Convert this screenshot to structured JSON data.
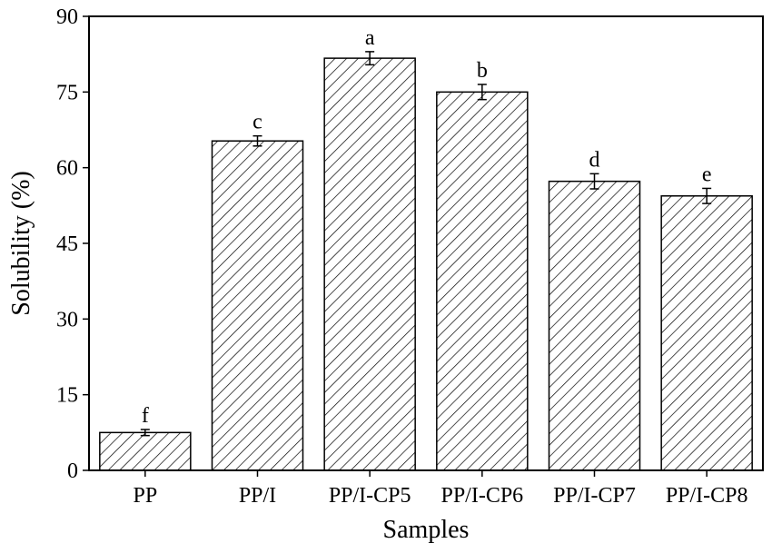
{
  "chart_data": {
    "type": "bar",
    "categories": [
      "PP",
      "PP/I",
      "PP/I-CP5",
      "PP/I-CP6",
      "PP/I-CP7",
      "PP/I-CP8"
    ],
    "values": [
      7.5,
      65.3,
      81.7,
      75.0,
      57.3,
      54.4
    ],
    "errors": [
      0.6,
      1.0,
      1.3,
      1.5,
      1.5,
      1.5
    ],
    "significance_letters": [
      "f",
      "c",
      "a",
      "b",
      "d",
      "e"
    ],
    "title": "",
    "xlabel": "Samples",
    "ylabel": "Solubility (%)",
    "ylim": [
      0,
      90
    ],
    "yticks": [
      "0",
      "15",
      "30",
      "45",
      "60",
      "75",
      "90"
    ],
    "grid": false,
    "legend": "none",
    "bar_fill": "hatched diagonal",
    "colors": {
      "bar_stroke": "#000000",
      "hatch": "#000000",
      "background": "#ffffff"
    }
  }
}
